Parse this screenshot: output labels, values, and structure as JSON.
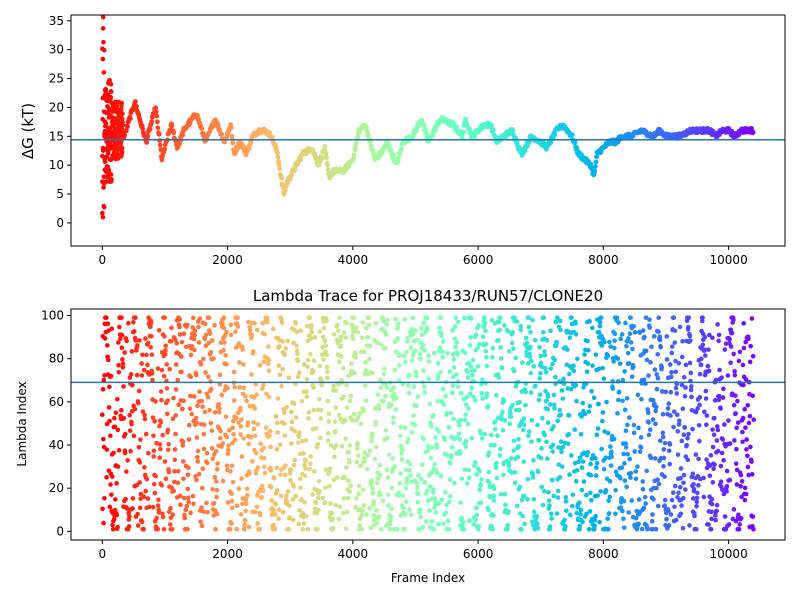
{
  "chart_data": [
    {
      "type": "scatter",
      "title": "",
      "xlabel": "",
      "ylabel": "ΔG (kT)",
      "xlim": [
        -500,
        10900
      ],
      "ylim": [
        -4,
        36
      ],
      "xticks": [
        0,
        2000,
        4000,
        6000,
        8000,
        10000
      ],
      "yticks": [
        0,
        5,
        10,
        15,
        20,
        25,
        30,
        35
      ],
      "hline": 14.4,
      "hline_color": "#1f77b4",
      "colormap": "rainbow",
      "trace_keypoints": {
        "x": [
          350,
          520,
          700,
          850,
          950,
          1100,
          1200,
          1300,
          1500,
          1650,
          1800,
          1950,
          2050,
          2100,
          2200,
          2300,
          2400,
          2500,
          2600,
          2700,
          2800,
          2850,
          2900,
          2950,
          3100,
          3200,
          3350,
          3450,
          3550,
          3620,
          3700,
          3850,
          4000,
          4100,
          4200,
          4300,
          4350,
          4450,
          4550,
          4700,
          4800,
          4950,
          5100,
          5200,
          5300,
          5400,
          5600,
          5750,
          5800,
          5900,
          6000,
          6100,
          6200,
          6300,
          6400,
          6550,
          6650,
          6700,
          6850,
          7000,
          7100,
          7250,
          7350,
          7500,
          7600,
          7700,
          7800,
          7850,
          7900,
          8000,
          8100,
          8200,
          8300,
          8450,
          8600,
          8800,
          8900,
          9000,
          9200,
          9400,
          9500,
          9700,
          9800,
          9900,
          10000,
          10100,
          10200,
          10300,
          10400
        ],
        "y": [
          15,
          21,
          14,
          20,
          11,
          17,
          13,
          16,
          19,
          14,
          18,
          14,
          17,
          12,
          14,
          12,
          15,
          16,
          16,
          15,
          12,
          8,
          5,
          7,
          10,
          12,
          13,
          10,
          13,
          8,
          9,
          9,
          11,
          16,
          17,
          13,
          11,
          12,
          14,
          10,
          14,
          15,
          18,
          14,
          16,
          18,
          17,
          15,
          18,
          15,
          16,
          17,
          17,
          14,
          15,
          16,
          13,
          12,
          15,
          14,
          13,
          16,
          17,
          15,
          12,
          11,
          10,
          8,
          12,
          13,
          14,
          14,
          15,
          15,
          16,
          15,
          16,
          15,
          15,
          16,
          16,
          16,
          15,
          16,
          16,
          15,
          16,
          16,
          16
        ]
      }
    },
    {
      "type": "scatter",
      "title": "Lambda Trace for PROJ18433/RUN57/CLONE20",
      "xlabel": "Frame Index",
      "ylabel": "Lambda Index",
      "xlim": [
        -500,
        10900
      ],
      "ylim": [
        -4,
        103
      ],
      "xticks": [
        0,
        2000,
        4000,
        6000,
        8000,
        10000
      ],
      "yticks": [
        0,
        20,
        40,
        60,
        80,
        100
      ],
      "hline": 69,
      "hline_color": "#1f77b4",
      "colormap": "rainbow",
      "value_range": [
        0,
        99
      ],
      "frame_range": [
        0,
        10400
      ]
    }
  ]
}
